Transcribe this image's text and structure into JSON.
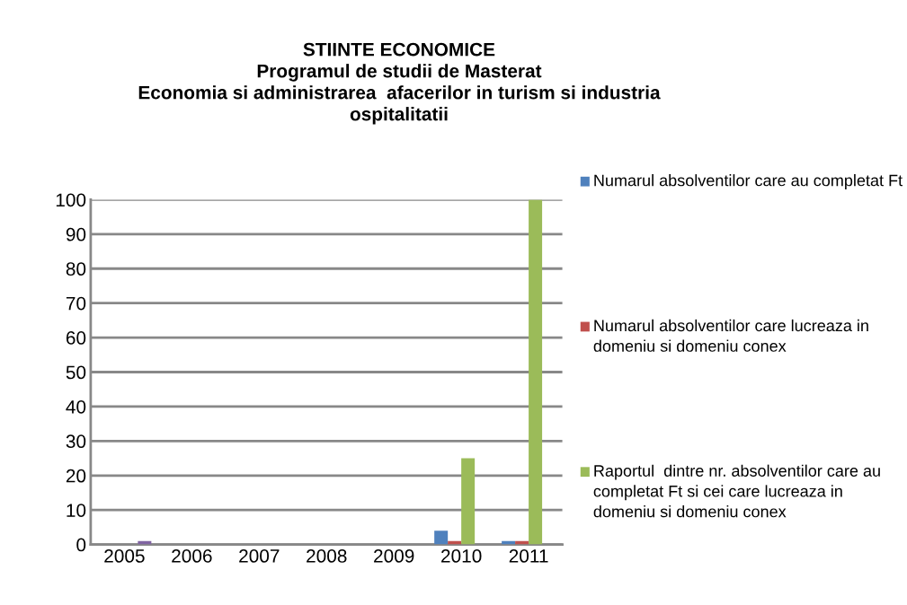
{
  "chart_data": {
    "type": "bar",
    "title": "STIINTE ECONOMICE\nProgramul de studii de Masterat\nEconomia si administrarea  afacerilor in turism si industria\nospitalitatii",
    "categories": [
      "2005",
      "2006",
      "2007",
      "2008",
      "2009",
      "2010",
      "2011"
    ],
    "series": [
      {
        "name": "Numarul absolventilor care au completat Ft",
        "color": "#4f81bd",
        "values": [
          0,
          0,
          0,
          0,
          0,
          4,
          1
        ]
      },
      {
        "name": "Numarul absolventilor care lucreaza in domeniu si domeniu conex",
        "color": "#c0504d",
        "values": [
          0,
          0,
          0,
          0,
          0,
          1,
          1
        ]
      },
      {
        "name": "Raportul  dintre nr. absolventilor care au completat Ft si cei care lucreaza in domeniu si domeniu conex",
        "color": "#9bbb59",
        "values": [
          0,
          0,
          0,
          0,
          0,
          25,
          100
        ]
      },
      {
        "color": "#8064a2",
        "values": [
          1,
          null,
          null,
          null,
          null,
          null,
          null
        ]
      }
    ],
    "ylim": [
      0,
      100
    ],
    "yticks": [
      0,
      10,
      20,
      30,
      40,
      50,
      60,
      70,
      80,
      90,
      100
    ],
    "grid": "y",
    "legend": "right"
  }
}
